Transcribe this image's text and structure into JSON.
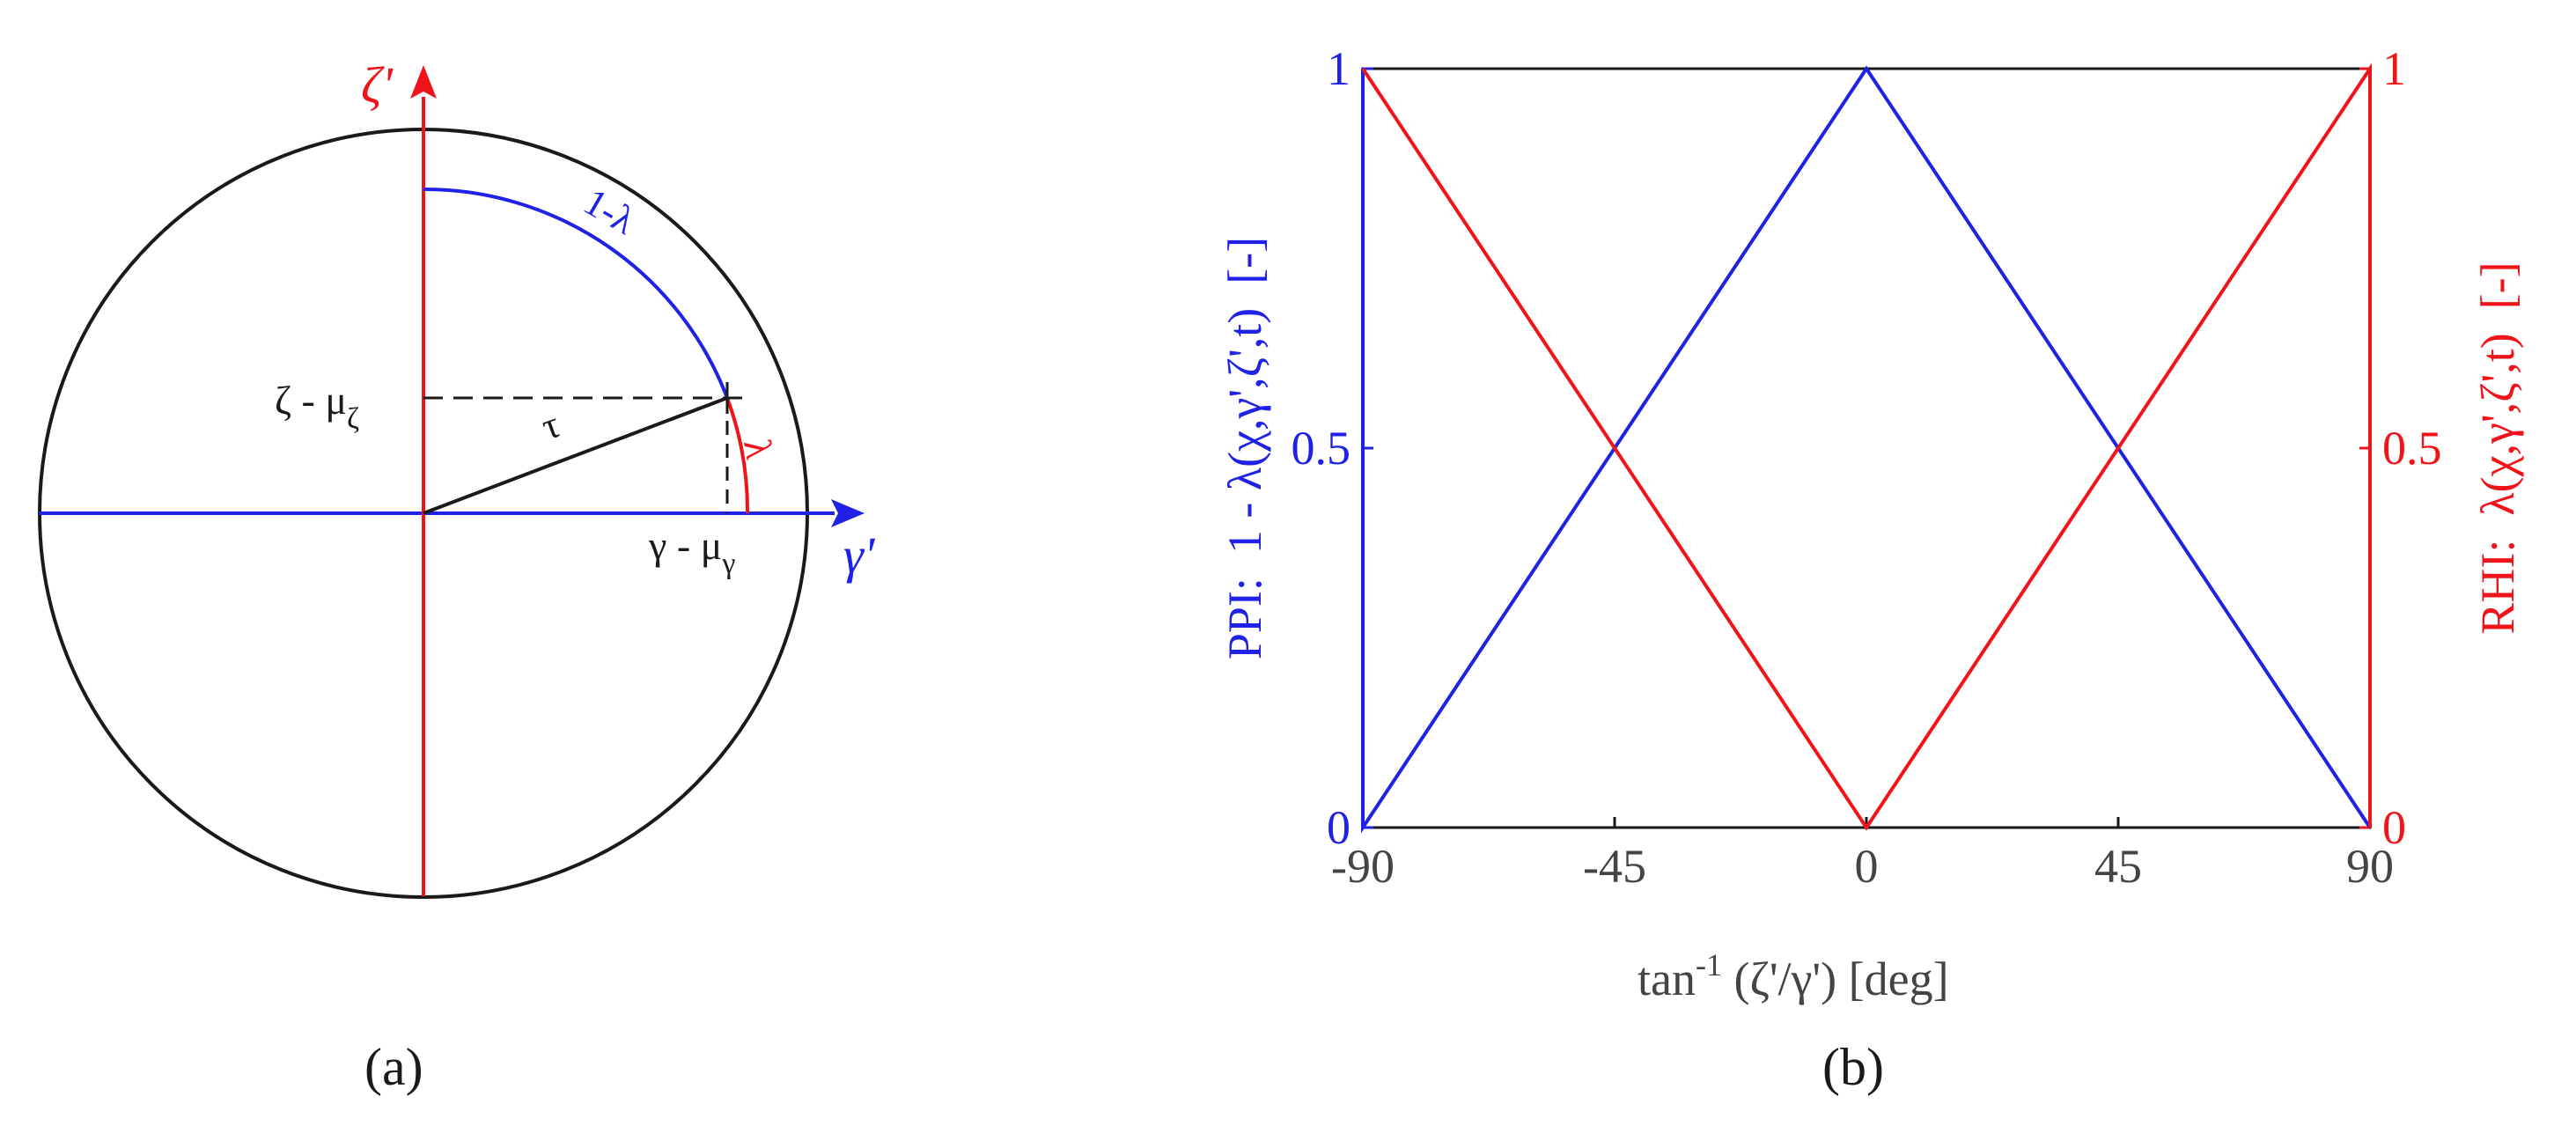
{
  "colors": {
    "blue": "#1f22e6",
    "red": "#f0141a",
    "black": "#1a1a1a",
    "gray": "#444444"
  },
  "figure_a": {
    "caption": "(a)",
    "labels": {
      "zeta_axis": "ζ'",
      "gamma_axis": "γ'",
      "one_minus_lambda": "1-λ",
      "lambda": "λ",
      "tau": "τ",
      "zeta_minus_mu": "ζ - μ",
      "zeta_minus_mu_sub": "ζ",
      "gamma_minus_mu": "γ - μ",
      "gamma_minus_mu_sub": "γ"
    }
  },
  "figure_b": {
    "caption": "(b)",
    "xlabel": "tan",
    "xlabel_sup": "-1",
    "xlabel_rest": " (ζ'/γ') [deg]",
    "ylabel_left": "PPI:  1 - λ(χ,γ',ζ',t)  [-]",
    "ylabel_right": "RHI:  λ(χ,γ',ζ',t)  [-]",
    "xticks": [
      "-90",
      "-45",
      "0",
      "45",
      "90"
    ],
    "yticks_left": [
      "0",
      "0.5",
      "1"
    ],
    "yticks_right": [
      "0",
      "0.5",
      "1"
    ]
  },
  "chart_data": [
    {
      "type": "line",
      "xlabel": "tan-1 (ζ'/γ') [deg]",
      "ylabel": "PPI:  1 - λ(χ,γ',ζ',t)  [-]",
      "ylabel_right": "RHI:  λ(χ,γ',ζ',t)  [-]",
      "xlim": [
        -90,
        90
      ],
      "ylim": [
        0,
        1
      ],
      "series": [
        {
          "axis": "left",
          "color": "#1f22e6",
          "x": [
            -90,
            -90,
            0,
            90
          ],
          "y": [
            1,
            0,
            1,
            0
          ]
        },
        {
          "axis": "right",
          "color": "#f0141a",
          "x": [
            -90,
            0,
            90,
            90
          ],
          "y": [
            1,
            0,
            1,
            0
          ]
        }
      ]
    }
  ]
}
